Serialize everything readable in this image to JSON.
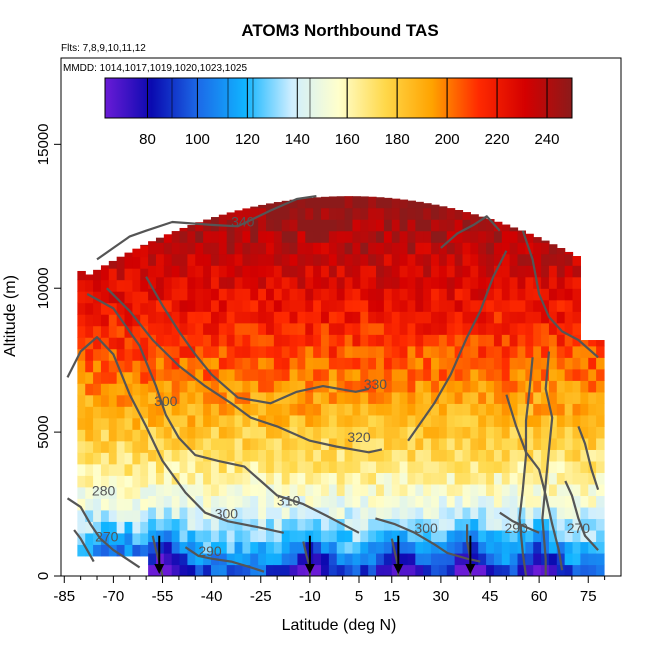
{
  "chart_data": {
    "type": "heatmap",
    "title": "ATOM3 Northbound TAS",
    "subtitle_flights": "Flts: 7,8,9,10,11,12",
    "subtitle_dates": "MMDD: 1014,1017,1019,1020,1023,1025",
    "xlabel": "Latitude (deg N)",
    "ylabel": "Altitude (m)",
    "xlim": [
      -86,
      85
    ],
    "ylim": [
      0,
      18000
    ],
    "x_ticks": [
      -85,
      -70,
      -55,
      -40,
      -25,
      -10,
      5,
      15,
      30,
      45,
      60,
      75
    ],
    "x_tick_labels": [
      "-85",
      "-70",
      "-55",
      "-40",
      "-25",
      "-10",
      "5",
      "15",
      "30",
      "45",
      "60",
      "75"
    ],
    "y_ticks": [
      0,
      5000,
      10000,
      15000
    ],
    "y_tick_labels": [
      "0",
      "5000",
      "10000",
      "15000"
    ],
    "colorbar": {
      "range": [
        63,
        250
      ],
      "ticks": [
        80,
        100,
        120,
        140,
        160,
        180,
        200,
        220,
        240
      ],
      "tick_labels": [
        "80",
        "100",
        "120",
        "140",
        "160",
        "180",
        "200",
        "220",
        "240"
      ],
      "stops": [
        "#6a1bd6",
        "#0a0ab0",
        "#1c6ae8",
        "#10b4ff",
        "#cfeeff",
        "#ffffcc",
        "#ffd84a",
        "#ffa300",
        "#ff2a00",
        "#d40000",
        "#8c1a1a"
      ]
    },
    "colors": {
      "contour": "#555555",
      "arrow": "#000000",
      "axis": "#000000"
    },
    "contour_labels": [
      {
        "text": "340",
        "lat": -30.5,
        "alt": 12150
      },
      {
        "text": "330",
        "lat": 10,
        "alt": 6500
      },
      {
        "text": "320",
        "lat": 5,
        "alt": 4650
      },
      {
        "text": "310",
        "lat": -16.5,
        "alt": 2450
      },
      {
        "text": "300",
        "lat": -54,
        "alt": 5900
      },
      {
        "text": "300",
        "lat": -35.5,
        "alt": 2000
      },
      {
        "text": "300",
        "lat": 25.5,
        "alt": 1500
      },
      {
        "text": "290",
        "lat": -40.5,
        "alt": 700
      },
      {
        "text": "290",
        "lat": 53,
        "alt": 1500
      },
      {
        "text": "280",
        "lat": -73,
        "alt": 2800
      },
      {
        "text": "270",
        "lat": -72,
        "alt": 1200
      },
      {
        "text": "270",
        "lat": 72,
        "alt": 1500
      }
    ],
    "arrows_lat": [
      -56,
      -10,
      17,
      39
    ]
  }
}
